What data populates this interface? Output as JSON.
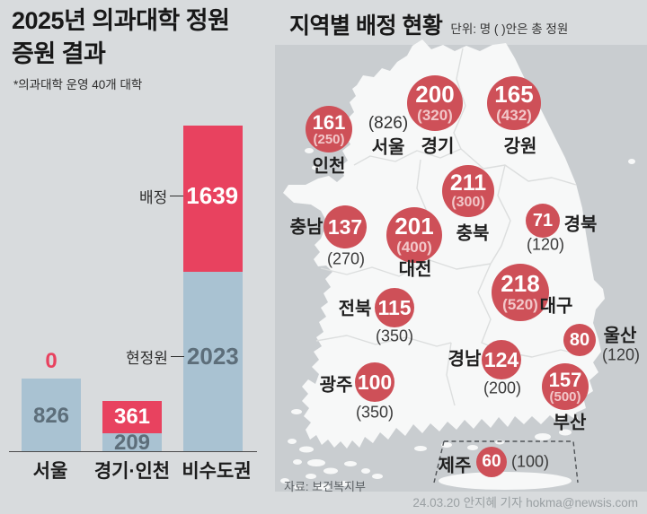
{
  "header": {
    "title_line1": "2025년 의과대학 정원",
    "title_line2": "증원 결과",
    "subtitle": "*의과대학 운영 40개 대학",
    "map_title": "지역별 배정 현황",
    "unit_note": "단위: 명 ( )안은 총 정원"
  },
  "footer": {
    "source": "자료: 보건복지부",
    "credit": "24.03.20 안지혜 기자 hokma@newsis.com"
  },
  "colors": {
    "background": "#d8dbdd",
    "sea": "#c9cdd0",
    "land": "#f7f8f8",
    "bar_allocated_red": "#e8425f",
    "bar_existing_blue": "#a9c2d2",
    "circle_red": "#ce5058",
    "slate_number": "#5d6e7a"
  },
  "chart_data": [
    {
      "type": "bar",
      "stacked": true,
      "title": "2025년 의과대학 정원 증원 결과",
      "note": "*의과대학 운영 40개 대학",
      "categories": [
        "서울",
        "경기·인천",
        "비수도권"
      ],
      "series": [
        {
          "name": "현정원",
          "color": "#a9c2d2",
          "values": [
            826,
            209,
            2023
          ]
        },
        {
          "name": "배정",
          "color": "#e8425f",
          "values": [
            0,
            361,
            1639
          ]
        }
      ],
      "value_labels": {
        "existing": [
          "826",
          "209",
          "2023"
        ],
        "allocated": [
          "0",
          "361",
          "1639"
        ]
      },
      "series_labels": {
        "allocated": "배정",
        "existing": "현정원"
      },
      "ylim": [
        0,
        3662
      ],
      "grid": false,
      "legend_position": "annotations-on-bars"
    },
    {
      "type": "table",
      "title": "지역별 배정 현황",
      "unit": "단위: 명 ( )안은 총 정원",
      "columns": [
        "지역",
        "배정",
        "총 정원"
      ],
      "rows": [
        [
          "인천",
          161,
          250
        ],
        [
          "서울",
          0,
          826
        ],
        [
          "경기",
          200,
          320
        ],
        [
          "강원",
          165,
          432
        ],
        [
          "충남",
          137,
          270
        ],
        [
          "충북",
          211,
          300
        ],
        [
          "대전",
          201,
          400
        ],
        [
          "경북",
          71,
          120
        ],
        [
          "대구",
          218,
          520
        ],
        [
          "전북",
          115,
          350
        ],
        [
          "광주",
          100,
          350
        ],
        [
          "경남",
          124,
          200
        ],
        [
          "울산",
          80,
          120
        ],
        [
          "부산",
          157,
          500
        ],
        [
          "제주",
          60,
          100
        ]
      ]
    }
  ],
  "map": {
    "regions": [
      {
        "id": "incheon",
        "name": "인천",
        "value": "161",
        "total": "(250)"
      },
      {
        "id": "seoul",
        "name": "서울",
        "value": "",
        "total": "(826)"
      },
      {
        "id": "gyeonggi",
        "name": "경기",
        "value": "200",
        "total": "(320)"
      },
      {
        "id": "gangwon",
        "name": "강원",
        "value": "165",
        "total": "(432)"
      },
      {
        "id": "chungnam",
        "name": "충남",
        "value": "137",
        "total": "(270)"
      },
      {
        "id": "chungbuk",
        "name": "충북",
        "value": "211",
        "total": "(300)"
      },
      {
        "id": "daejeon",
        "name": "대전",
        "value": "201",
        "total": "(400)"
      },
      {
        "id": "gyeongbuk",
        "name": "경북",
        "value": "71",
        "total": "(120)"
      },
      {
        "id": "daegu",
        "name": "대구",
        "value": "218",
        "total": "(520)"
      },
      {
        "id": "jeonbuk",
        "name": "전북",
        "value": "115",
        "total": "(350)"
      },
      {
        "id": "gwangju",
        "name": "광주",
        "value": "100",
        "total": "(350)"
      },
      {
        "id": "gyeongnam",
        "name": "경남",
        "value": "124",
        "total": "(200)"
      },
      {
        "id": "ulsan",
        "name": "울산",
        "value": "80",
        "total": "(120)"
      },
      {
        "id": "busan",
        "name": "부산",
        "value": "157",
        "total": "(500)"
      },
      {
        "id": "jeju",
        "name": "제주",
        "value": "60",
        "total": "(100)"
      }
    ]
  }
}
